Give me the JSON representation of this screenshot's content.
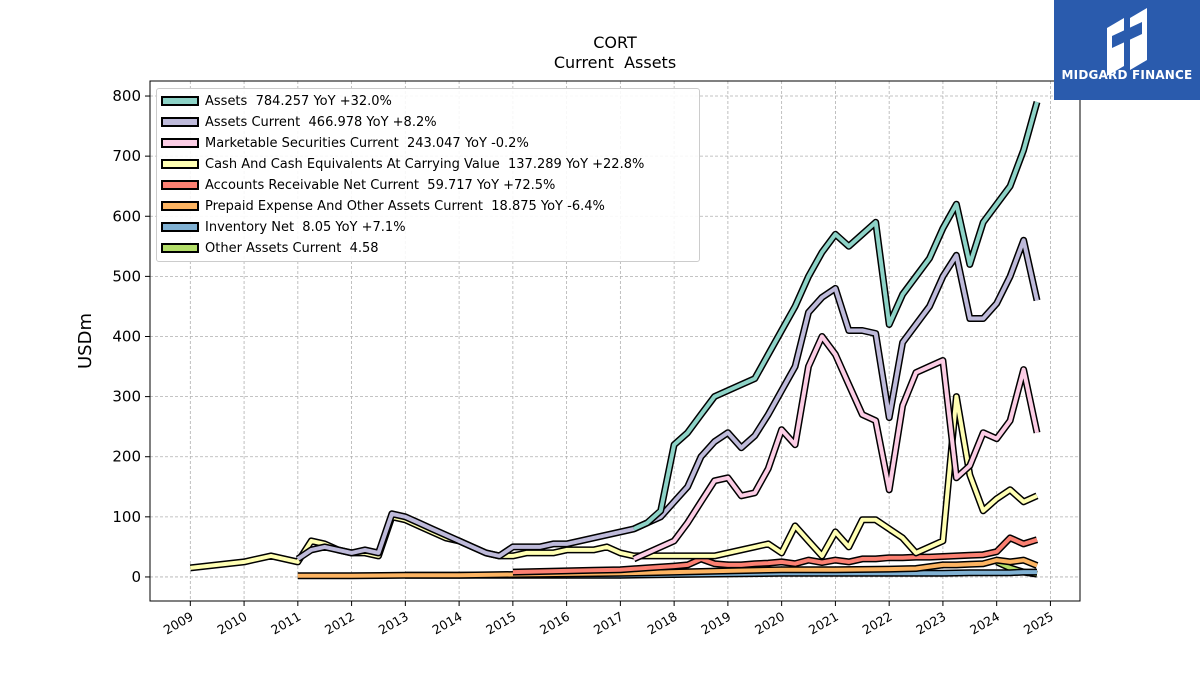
{
  "brand": {
    "name": "MIDGARD FINANCE",
    "bg_color": "#2a5bad"
  },
  "chart_data": {
    "type": "line",
    "title": "CORT",
    "subtitle": "Current  Assets",
    "xlabel": "",
    "ylabel": "USDm",
    "xlim": [
      2008.25,
      2025.55
    ],
    "ylim": [
      -40,
      825
    ],
    "x_ticks": [
      "2009",
      "2010",
      "2011",
      "2012",
      "2013",
      "2014",
      "2015",
      "2016",
      "2017",
      "2018",
      "2019",
      "2020",
      "2021",
      "2022",
      "2023",
      "2024",
      "2025"
    ],
    "y_ticks": [
      0,
      100,
      200,
      300,
      400,
      500,
      600,
      700,
      800
    ],
    "grid": true,
    "legend_position": "top-left",
    "series": [
      {
        "name": "Assets",
        "label": "Assets  784.257 YoY +32.0%",
        "color": "#8dd3c7",
        "x": [
          2017.25,
          2017.5,
          2017.75,
          2018.0,
          2018.25,
          2018.5,
          2018.75,
          2019.0,
          2019.25,
          2019.5,
          2019.75,
          2020.0,
          2020.25,
          2020.5,
          2020.75,
          2021.0,
          2021.25,
          2021.5,
          2021.75,
          2022.0,
          2022.25,
          2022.5,
          2022.75,
          2023.0,
          2023.25,
          2023.5,
          2023.75,
          2024.0,
          2024.25,
          2024.5,
          2024.75
        ],
        "y": [
          80,
          90,
          110,
          220,
          240,
          270,
          300,
          310,
          320,
          330,
          370,
          410,
          450,
          500,
          540,
          570,
          550,
          570,
          590,
          420,
          470,
          500,
          530,
          580,
          620,
          520,
          590,
          620,
          650,
          710,
          790
        ]
      },
      {
        "name": "Assets Current",
        "label": "Assets Current  466.978 YoY +8.2%",
        "color": "#bebada",
        "x": [
          2011.0,
          2011.25,
          2011.5,
          2011.75,
          2012.0,
          2012.25,
          2012.5,
          2012.75,
          2013.0,
          2013.25,
          2013.5,
          2013.75,
          2014.0,
          2014.25,
          2014.5,
          2014.75,
          2015.0,
          2015.25,
          2015.5,
          2015.75,
          2016.0,
          2016.25,
          2016.5,
          2016.75,
          2017.0,
          2017.25,
          2017.5,
          2017.75,
          2018.0,
          2018.25,
          2018.5,
          2018.75,
          2019.0,
          2019.25,
          2019.5,
          2019.75,
          2020.0,
          2020.25,
          2020.5,
          2020.75,
          2021.0,
          2021.25,
          2021.5,
          2021.75,
          2022.0,
          2022.25,
          2022.5,
          2022.75,
          2023.0,
          2023.25,
          2023.5,
          2023.75,
          2024.0,
          2024.25,
          2024.5,
          2024.75
        ],
        "y": [
          30,
          45,
          50,
          45,
          40,
          45,
          40,
          105,
          100,
          90,
          80,
          70,
          60,
          50,
          40,
          35,
          50,
          50,
          50,
          55,
          55,
          60,
          65,
          70,
          75,
          80,
          90,
          100,
          125,
          150,
          200,
          225,
          240,
          215,
          235,
          270,
          310,
          350,
          440,
          465,
          480,
          410,
          410,
          405,
          265,
          390,
          420,
          450,
          500,
          535,
          430,
          430,
          455,
          500,
          560,
          460
        ]
      },
      {
        "name": "Marketable Securities Current",
        "label": "Marketable Securities Current  243.047 YoY -0.2%",
        "color": "#fccde5",
        "x": [
          2017.25,
          2017.5,
          2017.75,
          2018.0,
          2018.25,
          2018.5,
          2018.75,
          2019.0,
          2019.25,
          2019.5,
          2019.75,
          2020.0,
          2020.25,
          2020.5,
          2020.75,
          2021.0,
          2021.25,
          2021.5,
          2021.75,
          2022.0,
          2022.25,
          2022.5,
          2022.75,
          2023.0,
          2023.25,
          2023.5,
          2023.75,
          2024.0,
          2024.25,
          2024.5,
          2024.75
        ],
        "y": [
          30,
          40,
          50,
          60,
          90,
          125,
          160,
          165,
          135,
          140,
          180,
          245,
          220,
          350,
          400,
          370,
          320,
          270,
          260,
          145,
          285,
          340,
          350,
          360,
          165,
          185,
          240,
          230,
          260,
          345,
          240
        ]
      },
      {
        "name": "Cash And Cash Equivalents At Carrying Value",
        "label": "Cash And Cash Equivalents At Carrying Value  137.289 YoY +22.8%",
        "color": "#ffffb3",
        "x": [
          2009.0,
          2009.5,
          2010.0,
          2010.5,
          2011.0,
          2011.25,
          2011.5,
          2011.75,
          2012.0,
          2012.25,
          2012.5,
          2012.75,
          2013.0,
          2013.25,
          2013.5,
          2013.75,
          2014.0,
          2014.25,
          2014.5,
          2014.75,
          2015.0,
          2015.25,
          2015.5,
          2015.75,
          2016.0,
          2016.25,
          2016.5,
          2016.75,
          2017.0,
          2017.25,
          2017.5,
          2017.75,
          2018.0,
          2018.25,
          2018.5,
          2018.75,
          2019.0,
          2019.25,
          2019.5,
          2019.75,
          2020.0,
          2020.25,
          2020.5,
          2020.75,
          2021.0,
          2021.25,
          2021.5,
          2021.75,
          2022.0,
          2022.25,
          2022.5,
          2022.75,
          2023.0,
          2023.25,
          2023.5,
          2023.75,
          2024.0,
          2024.25,
          2024.5,
          2024.75
        ],
        "y": [
          15,
          20,
          25,
          35,
          25,
          60,
          55,
          45,
          40,
          40,
          35,
          100,
          95,
          85,
          75,
          65,
          60,
          50,
          40,
          35,
          35,
          40,
          40,
          40,
          45,
          45,
          45,
          50,
          40,
          35,
          35,
          35,
          35,
          35,
          35,
          35,
          40,
          45,
          50,
          55,
          40,
          85,
          60,
          35,
          75,
          50,
          95,
          95,
          80,
          65,
          40,
          50,
          60,
          300,
          170,
          110,
          130,
          145,
          125,
          135
        ]
      },
      {
        "name": "Accounts Receivable Net Current",
        "label": "Accounts Receivable Net Current  59.717 YoY +72.5%",
        "color": "#fb8072",
        "x": [
          2015.0,
          2015.5,
          2016.0,
          2016.5,
          2017.0,
          2017.5,
          2018.0,
          2018.25,
          2018.5,
          2018.75,
          2019.0,
          2019.25,
          2019.5,
          2019.75,
          2020.0,
          2020.25,
          2020.5,
          2020.75,
          2021.0,
          2021.25,
          2021.5,
          2021.75,
          2022.0,
          2022.25,
          2022.5,
          2022.75,
          2023.0,
          2023.25,
          2023.5,
          2023.75,
          2024.0,
          2024.25,
          2024.5,
          2024.75
        ],
        "y": [
          8,
          9,
          10,
          11,
          12,
          15,
          18,
          20,
          30,
          22,
          20,
          20,
          22,
          23,
          25,
          22,
          28,
          24,
          28,
          25,
          30,
          30,
          32,
          32,
          33,
          33,
          34,
          35,
          36,
          37,
          42,
          65,
          55,
          62
        ]
      },
      {
        "name": "Prepaid Expense And Other Assets Current",
        "label": "Prepaid Expense And Other Assets Current  18.875 YoY -6.4%",
        "color": "#fdb462",
        "x": [
          2011.0,
          2012.0,
          2013.0,
          2014.0,
          2015.0,
          2016.0,
          2017.0,
          2018.0,
          2019.0,
          2020.0,
          2021.0,
          2022.0,
          2022.5,
          2023.0,
          2023.25,
          2023.5,
          2023.75,
          2024.0,
          2024.25,
          2024.5,
          2024.75
        ],
        "y": [
          2,
          2,
          3,
          3,
          4,
          5,
          6,
          8,
          10,
          12,
          12,
          13,
          14,
          20,
          20,
          21,
          22,
          28,
          25,
          28,
          19
        ]
      },
      {
        "name": "Inventory Net",
        "label": "Inventory Net  8.05 YoY +7.1%",
        "color": "#80b1d3",
        "x": [
          2013.0,
          2014.0,
          2015.0,
          2016.0,
          2017.0,
          2018.0,
          2019.0,
          2020.0,
          2021.0,
          2022.0,
          2023.0,
          2023.5,
          2024.0,
          2024.25,
          2024.5,
          2024.75
        ],
        "y": [
          3,
          3,
          3,
          3,
          3,
          4,
          5,
          6,
          6,
          6,
          6,
          7,
          7,
          7,
          8,
          8
        ]
      },
      {
        "name": "Other Assets Current",
        "label": "Other Assets Current  4.58",
        "color": "#b3de69",
        "x": [
          2024.0,
          2024.25,
          2024.5,
          2024.75
        ],
        "y": [
          25,
          15,
          8,
          4.58
        ]
      }
    ]
  }
}
